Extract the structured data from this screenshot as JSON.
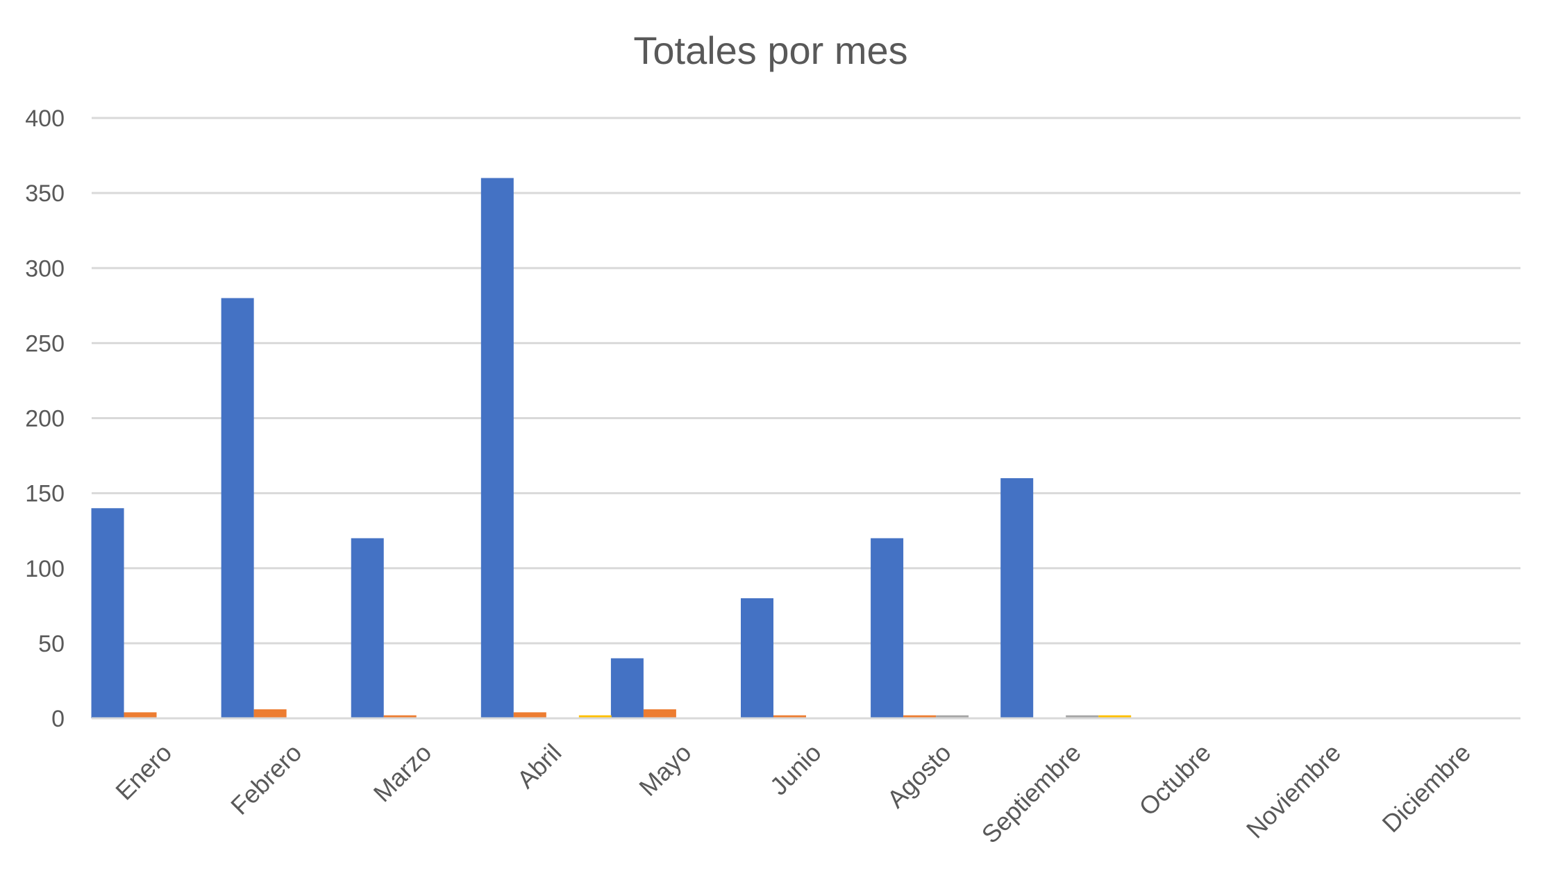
{
  "chart_data": {
    "type": "bar",
    "title": "Totales por mes",
    "xlabel": "",
    "ylabel": "",
    "ylim": [
      0,
      400
    ],
    "yticks": [
      0,
      50,
      100,
      150,
      200,
      250,
      300,
      350,
      400
    ],
    "grid": true,
    "legend": "none",
    "categories": [
      "Enero",
      "Febrero",
      "Marzo",
      "Abril",
      "Mayo",
      "Junio",
      "Agosto",
      "Septiembre",
      "Octubre",
      "Noviembre",
      "Diciembre"
    ],
    "series": [
      {
        "color": "#4472C4",
        "values": [
          140,
          280,
          120,
          360,
          40,
          80,
          120,
          160,
          0,
          0,
          0
        ]
      },
      {
        "color": "#ED7D31",
        "values": [
          4,
          6,
          2,
          4,
          6,
          2,
          2,
          0,
          0,
          0,
          0
        ]
      },
      {
        "color": "#A5A5A5",
        "values": [
          0,
          0,
          0,
          0,
          0,
          0,
          2,
          2,
          0,
          0,
          0
        ]
      },
      {
        "color": "#FFC000",
        "values": [
          0,
          0,
          0,
          2,
          0,
          0,
          0,
          2,
          0,
          0,
          0
        ]
      }
    ]
  }
}
